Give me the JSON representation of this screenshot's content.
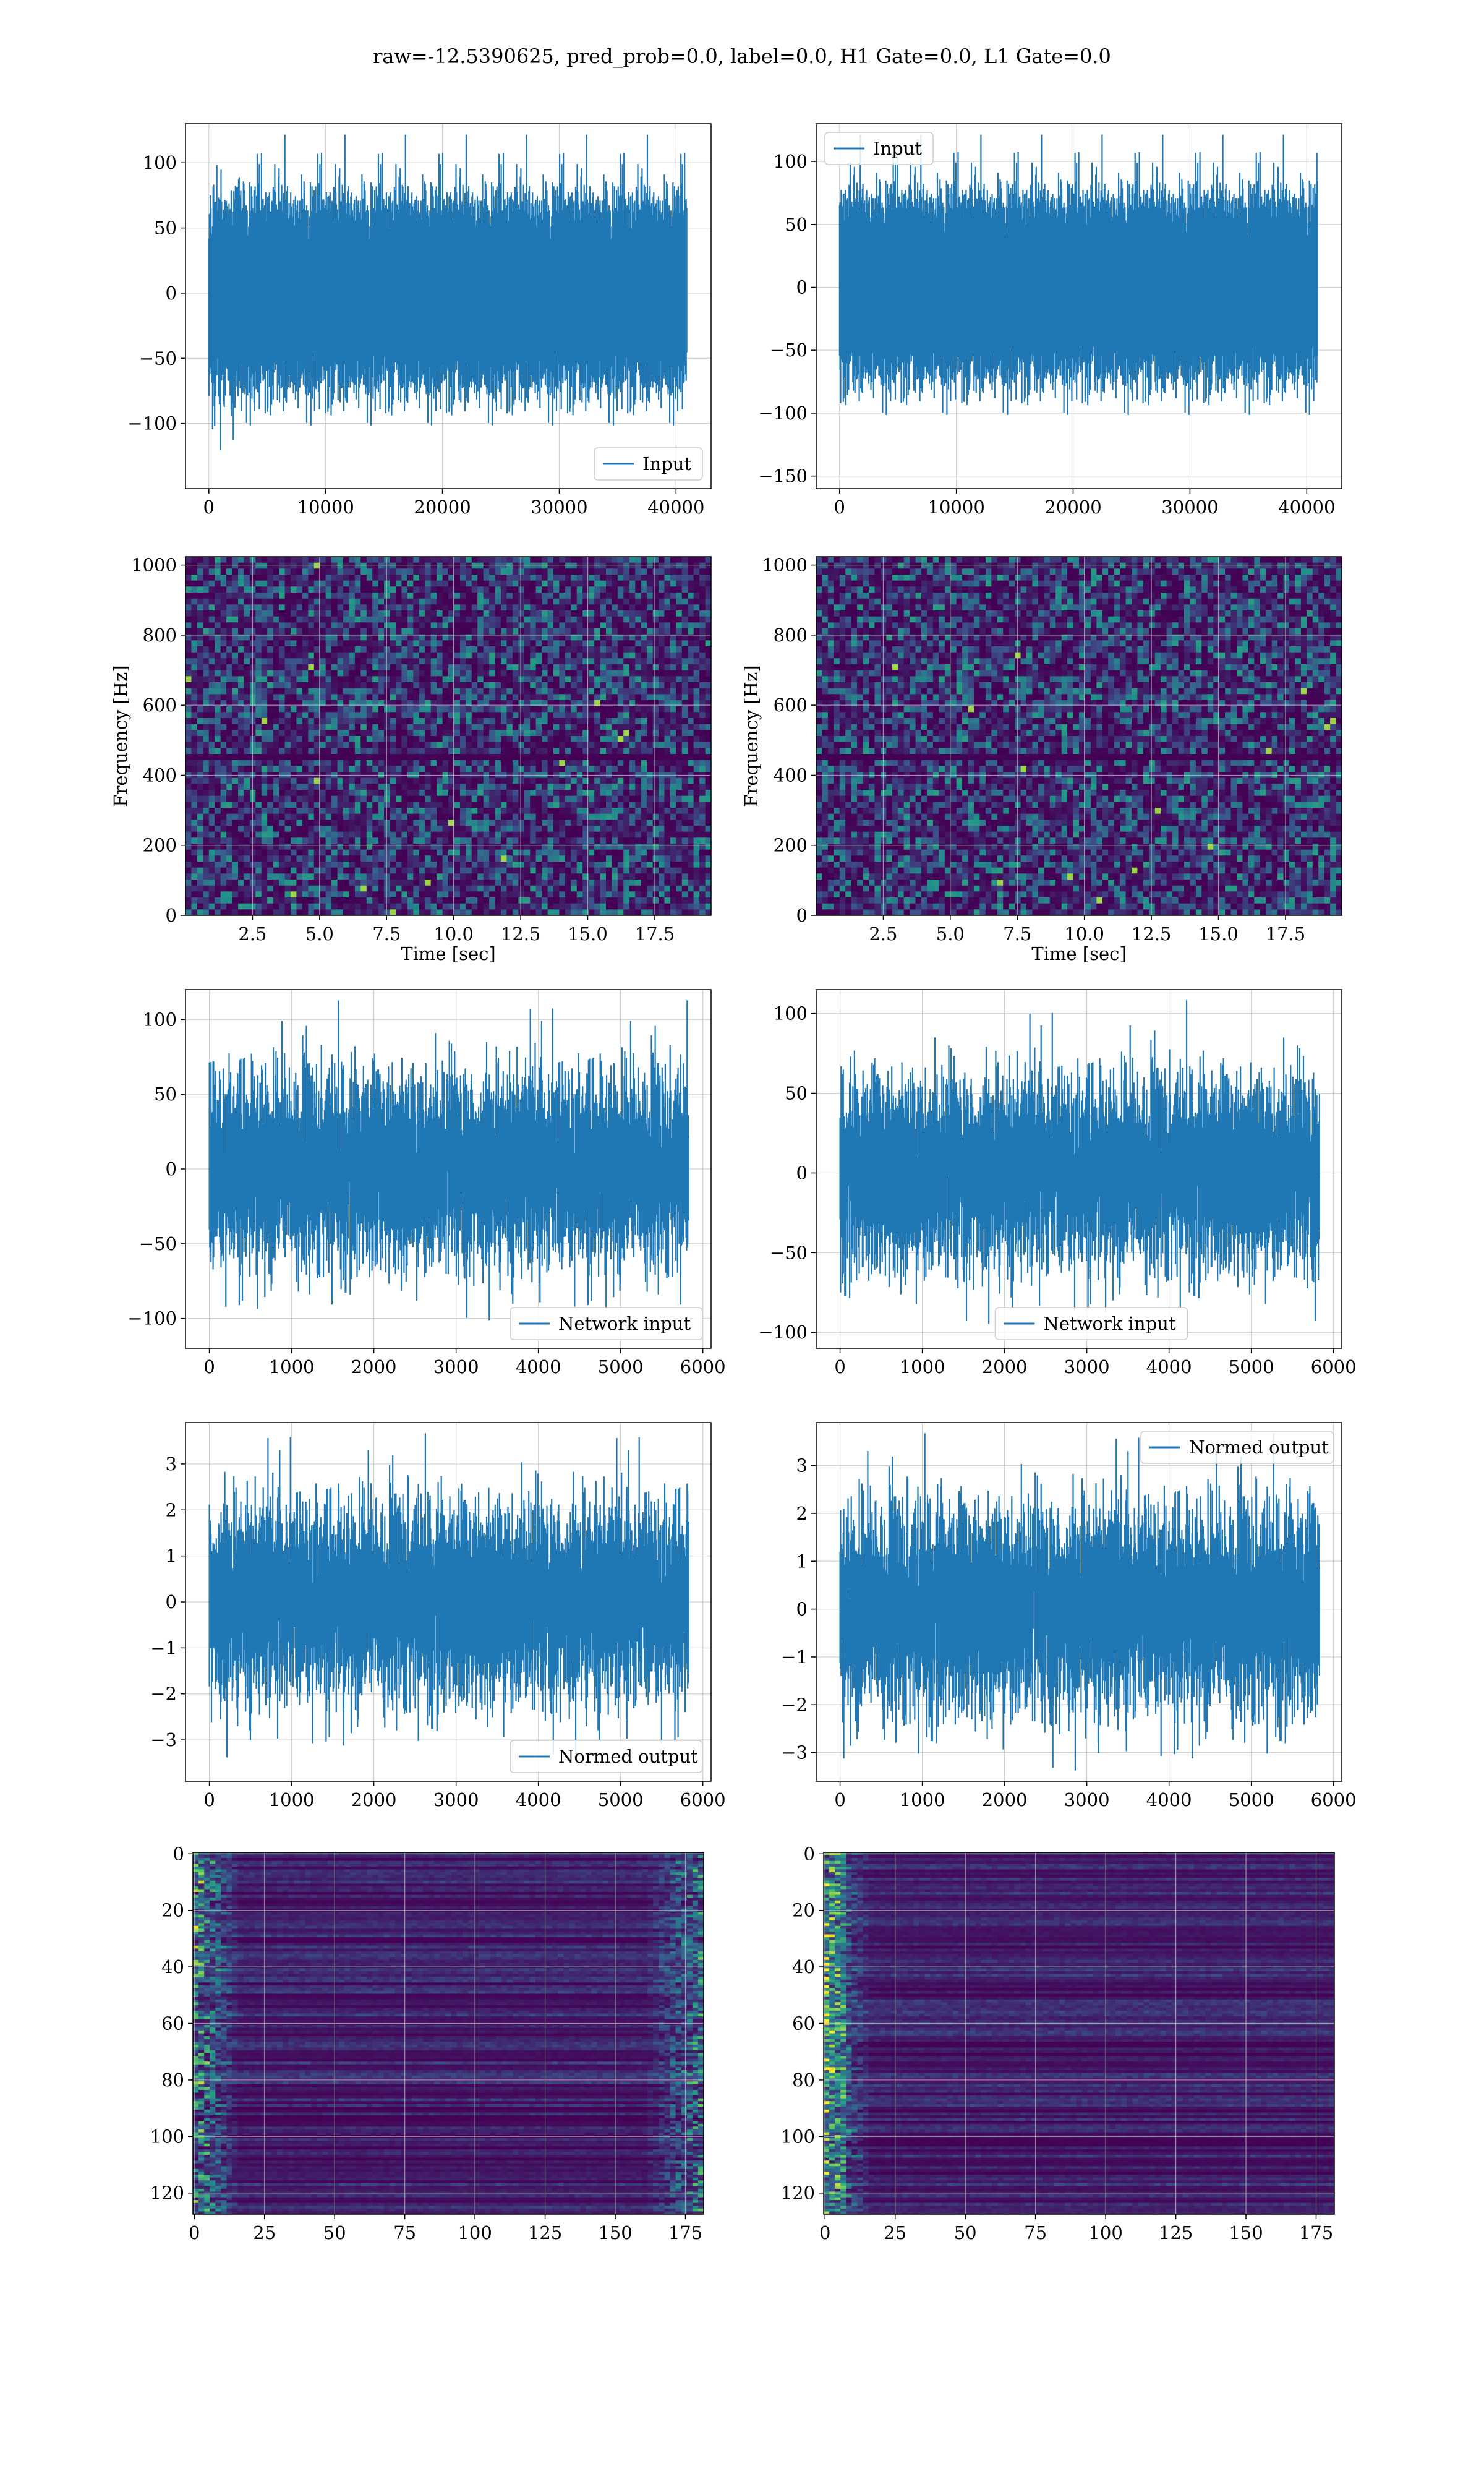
{
  "suptitle": "raw=-12.5390625, pred_prob=0.0, label=0.0, H1 Gate=0.0, L1 Gate=0.0",
  "colors": {
    "series": "#1f77b4",
    "grid": "#b0b0b0"
  },
  "chart_data": [
    {
      "id": "input-h1",
      "type": "line",
      "series": [
        {
          "name": "Input"
        }
      ],
      "xlim": [
        -2000,
        43000
      ],
      "ylim": [
        -150,
        130
      ],
      "n": 40960,
      "noise_sd": 30,
      "xticks": [
        0,
        10000,
        20000,
        30000,
        40000
      ],
      "xtick_labels": [
        "0",
        "10000",
        "20000",
        "30000",
        "40000"
      ],
      "yticks": [
        -100,
        -50,
        0,
        50,
        100
      ],
      "ytick_labels": [
        "−100",
        "−50",
        "0",
        "50",
        "100"
      ],
      "legend": "lower-right",
      "grid": true,
      "xlabel": "",
      "ylabel": ""
    },
    {
      "id": "input-l1",
      "type": "line",
      "series": [
        {
          "name": "Input"
        }
      ],
      "xlim": [
        -2000,
        43000
      ],
      "ylim": [
        -160,
        130
      ],
      "n": 40960,
      "noise_sd": 30,
      "xticks": [
        0,
        10000,
        20000,
        30000,
        40000
      ],
      "xtick_labels": [
        "0",
        "10000",
        "20000",
        "30000",
        "40000"
      ],
      "yticks": [
        -150,
        -100,
        -50,
        0,
        50,
        100
      ],
      "ytick_labels": [
        "−150",
        "−100",
        "−50",
        "0",
        "50",
        "100"
      ],
      "legend": "upper-left",
      "grid": true,
      "xlabel": "",
      "ylabel": ""
    },
    {
      "id": "spec-h1",
      "type": "heatmap",
      "xlim": [
        0,
        19.6
      ],
      "ylim": [
        0,
        1024
      ],
      "xticks": [
        2.5,
        5,
        7.5,
        10,
        12.5,
        15,
        17.5
      ],
      "xtick_labels": [
        "2.5",
        "5.0",
        "7.5",
        "10.0",
        "12.5",
        "15.0",
        "17.5"
      ],
      "yticks": [
        0,
        200,
        400,
        600,
        800,
        1000
      ],
      "ytick_labels": [
        "0",
        "200",
        "400",
        "600",
        "800",
        "1000"
      ],
      "xlabel": "Time [sec]",
      "ylabel": "Frequency [Hz]",
      "grid": true
    },
    {
      "id": "spec-l1",
      "type": "heatmap",
      "xlim": [
        0,
        19.6
      ],
      "ylim": [
        0,
        1024
      ],
      "xticks": [
        2.5,
        5,
        7.5,
        10,
        12.5,
        15,
        17.5
      ],
      "xtick_labels": [
        "2.5",
        "5.0",
        "7.5",
        "10.0",
        "12.5",
        "15.0",
        "17.5"
      ],
      "yticks": [
        0,
        200,
        400,
        600,
        800,
        1000
      ],
      "ytick_labels": [
        "0",
        "200",
        "400",
        "600",
        "800",
        "1000"
      ],
      "xlabel": "Time [sec]",
      "ylabel": "Frequency [Hz]",
      "grid": true
    },
    {
      "id": "net-h1",
      "type": "line",
      "series": [
        {
          "name": "Network input"
        }
      ],
      "xlim": [
        -290,
        6100
      ],
      "ylim": [
        -120,
        120
      ],
      "n": 5835,
      "noise_sd": 30,
      "xticks": [
        0,
        1000,
        2000,
        3000,
        4000,
        5000,
        6000
      ],
      "xtick_labels": [
        "0",
        "1000",
        "2000",
        "3000",
        "4000",
        "5000",
        "6000"
      ],
      "yticks": [
        -100,
        -50,
        0,
        50,
        100
      ],
      "ytick_labels": [
        "−100",
        "−50",
        "0",
        "50",
        "100"
      ],
      "legend": "lower-right",
      "grid": true,
      "xlabel": "",
      "ylabel": ""
    },
    {
      "id": "net-l1",
      "type": "line",
      "series": [
        {
          "name": "Network input"
        }
      ],
      "xlim": [
        -290,
        6100
      ],
      "ylim": [
        -110,
        115
      ],
      "n": 5835,
      "noise_sd": 28,
      "xticks": [
        0,
        1000,
        2000,
        3000,
        4000,
        5000,
        6000
      ],
      "xtick_labels": [
        "0",
        "1000",
        "2000",
        "3000",
        "4000",
        "5000",
        "6000"
      ],
      "yticks": [
        -100,
        -50,
        0,
        50,
        100
      ],
      "ytick_labels": [
        "−100",
        "−50",
        "0",
        "50",
        "100"
      ],
      "legend": "lower-center",
      "grid": true,
      "xlabel": "",
      "ylabel": ""
    },
    {
      "id": "norm-h1",
      "type": "line",
      "series": [
        {
          "name": "Normed output"
        }
      ],
      "xlim": [
        -290,
        6100
      ],
      "ylim": [
        -3.9,
        3.9
      ],
      "n": 5835,
      "noise_sd": 1.0,
      "xticks": [
        0,
        1000,
        2000,
        3000,
        4000,
        5000,
        6000
      ],
      "xtick_labels": [
        "0",
        "1000",
        "2000",
        "3000",
        "4000",
        "5000",
        "6000"
      ],
      "yticks": [
        -3,
        -2,
        -1,
        0,
        1,
        2,
        3
      ],
      "ytick_labels": [
        "−3",
        "−2",
        "−1",
        "0",
        "1",
        "2",
        "3"
      ],
      "legend": "lower-right",
      "grid": true,
      "xlabel": "",
      "ylabel": ""
    },
    {
      "id": "norm-l1",
      "type": "line",
      "series": [
        {
          "name": "Normed output"
        }
      ],
      "xlim": [
        -290,
        6100
      ],
      "ylim": [
        -3.6,
        3.9
      ],
      "n": 5835,
      "noise_sd": 1.0,
      "xticks": [
        0,
        1000,
        2000,
        3000,
        4000,
        5000,
        6000
      ],
      "xtick_labels": [
        "0",
        "1000",
        "2000",
        "3000",
        "4000",
        "5000",
        "6000"
      ],
      "yticks": [
        -3,
        -2,
        -1,
        0,
        1,
        2,
        3
      ],
      "ytick_labels": [
        "−3",
        "−2",
        "−1",
        "0",
        "1",
        "2",
        "3"
      ],
      "legend": "upper-right",
      "grid": true,
      "xlabel": "",
      "ylabel": ""
    },
    {
      "id": "feat-h1",
      "type": "heatmap",
      "xlim": [
        -0.5,
        181.5
      ],
      "ylim": [
        127.5,
        -0.5
      ],
      "rows": 128,
      "cols": 182,
      "xticks": [
        0,
        25,
        50,
        75,
        100,
        125,
        150,
        175
      ],
      "xtick_labels": [
        "0",
        "25",
        "50",
        "75",
        "100",
        "125",
        "150",
        "175"
      ],
      "yticks": [
        0,
        20,
        40,
        60,
        80,
        100,
        120
      ],
      "ytick_labels": [
        "0",
        "20",
        "40",
        "60",
        "80",
        "100",
        "120"
      ],
      "xlabel": "",
      "ylabel": "",
      "grid": true
    },
    {
      "id": "feat-l1",
      "type": "heatmap",
      "xlim": [
        -0.5,
        181.5
      ],
      "ylim": [
        127.5,
        -0.5
      ],
      "rows": 128,
      "cols": 182,
      "xticks": [
        0,
        25,
        50,
        75,
        100,
        125,
        150,
        175
      ],
      "xtick_labels": [
        "0",
        "25",
        "50",
        "75",
        "100",
        "125",
        "150",
        "175"
      ],
      "yticks": [
        0,
        20,
        40,
        60,
        80,
        100,
        120
      ],
      "ytick_labels": [
        "0",
        "20",
        "40",
        "60",
        "80",
        "100",
        "120"
      ],
      "xlabel": "",
      "ylabel": "",
      "grid": true
    }
  ]
}
